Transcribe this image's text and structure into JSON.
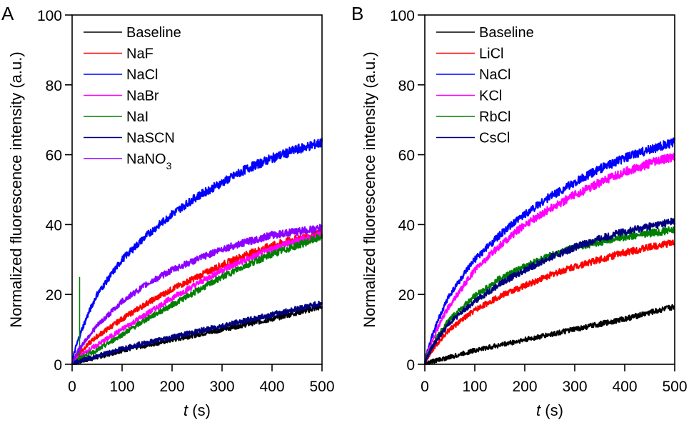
{
  "chart_data": [
    {
      "type": "line",
      "panel_label": "A",
      "title": "",
      "xlabel_italic": "t",
      "xlabel_unit": " (s)",
      "ylabel": "Normalized fluorescence intensity (a.u.)",
      "xlim": [
        0,
        500
      ],
      "ylim": [
        0,
        100
      ],
      "xticks": [
        0,
        100,
        200,
        300,
        400,
        500
      ],
      "yticks": [
        0,
        20,
        40,
        60,
        80,
        100
      ],
      "grid": false,
      "legend_position": "top-left",
      "x": [
        0,
        50,
        100,
        150,
        200,
        250,
        300,
        350,
        400,
        450,
        500
      ],
      "series": [
        {
          "name": "Baseline",
          "color": "#000000",
          "values": [
            0,
            2,
            4,
            5.5,
            7,
            8.5,
            10,
            11.5,
            13,
            14.8,
            16.5
          ]
        },
        {
          "name": "NaF",
          "color": "#ff0000",
          "values": [
            0,
            8,
            13,
            17.5,
            21.5,
            25,
            28.5,
            31.5,
            34,
            36,
            37.5
          ]
        },
        {
          "name": "NaCl",
          "color": "#0000ff",
          "values": [
            0,
            20,
            30,
            37,
            43,
            48,
            52,
            56,
            59,
            61.5,
            63.5
          ]
        },
        {
          "name": "NaBr",
          "color": "#ff00ff",
          "values": [
            0,
            5.5,
            10,
            14.5,
            19,
            23,
            27,
            30,
            33,
            35.5,
            37
          ]
        },
        {
          "name": "NaI",
          "color": "#008000",
          "values": [
            0,
            4,
            8.5,
            13,
            17,
            21,
            25,
            28.5,
            31.5,
            34,
            36.5
          ],
          "spike": {
            "x": 15,
            "y": 25
          }
        },
        {
          "name": "NaSCN",
          "color": "#000080",
          "values": [
            0,
            2.3,
            4.5,
            6.2,
            7.8,
            9.4,
            11,
            12.6,
            14.2,
            15.9,
            17.5
          ]
        },
        {
          "name": "NaNO",
          "name_subscript": "3",
          "color": "#8b00ff",
          "values": [
            0,
            11,
            18,
            23,
            27,
            30,
            33,
            35,
            37,
            38,
            39
          ]
        }
      ]
    },
    {
      "type": "line",
      "panel_label": "B",
      "title": "",
      "xlabel_italic": "t",
      "xlabel_unit": " (s)",
      "ylabel": "Normalized fluorescence intensity (a.u.)",
      "xlim": [
        0,
        500
      ],
      "ylim": [
        0,
        100
      ],
      "xticks": [
        0,
        100,
        200,
        300,
        400,
        500
      ],
      "yticks": [
        0,
        20,
        40,
        60,
        80,
        100
      ],
      "grid": false,
      "legend_position": "top-left",
      "x": [
        0,
        50,
        100,
        150,
        200,
        250,
        300,
        350,
        400,
        450,
        500
      ],
      "series": [
        {
          "name": "Baseline",
          "color": "#000000",
          "values": [
            0,
            2,
            4,
            5.5,
            7,
            8.5,
            10,
            11.5,
            13,
            14.8,
            16.5
          ]
        },
        {
          "name": "LiCl",
          "color": "#ff0000",
          "values": [
            0,
            10,
            15.5,
            19.5,
            22.5,
            25.5,
            28,
            30,
            32,
            33.5,
            35
          ]
        },
        {
          "name": "NaCl",
          "color": "#0000ff",
          "values": [
            0,
            20,
            30,
            37,
            43,
            48,
            52,
            56,
            59,
            61.5,
            63.5
          ]
        },
        {
          "name": "KCl",
          "color": "#ff00ff",
          "values": [
            0,
            17,
            27,
            34,
            40,
            44.5,
            48.5,
            52,
            55,
            57.5,
            59.5
          ]
        },
        {
          "name": "RbCl",
          "color": "#008000",
          "values": [
            0,
            13,
            19.5,
            24.5,
            28,
            31,
            33.5,
            35,
            36.5,
            37.5,
            38.5
          ]
        },
        {
          "name": "CsCl",
          "color": "#000080",
          "values": [
            0,
            12,
            18,
            23,
            27,
            30.5,
            33.5,
            36,
            38,
            39.5,
            41
          ]
        }
      ]
    }
  ]
}
